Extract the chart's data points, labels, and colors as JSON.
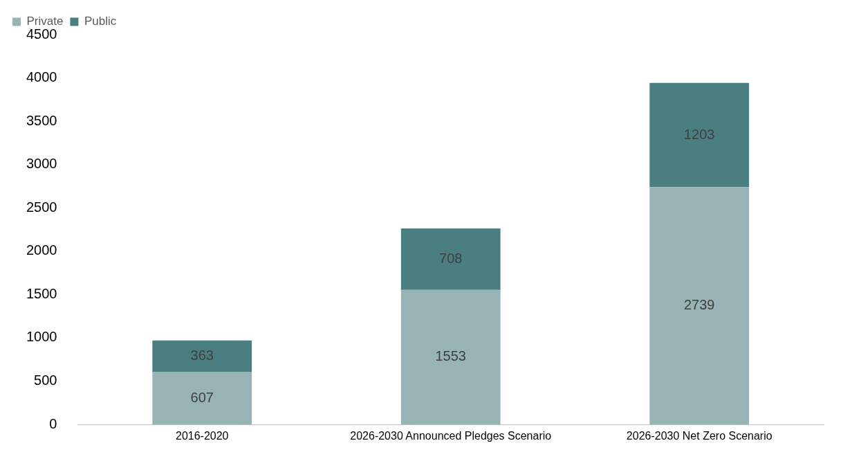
{
  "chart_data": {
    "type": "bar",
    "stacked": true,
    "categories": [
      "2016-2020",
      "2026-2030 Announced Pledges Scenario",
      "2026-2030 Net Zero Scenario"
    ],
    "series": [
      {
        "name": "Private",
        "color": "#97b3b4",
        "values": [
          607,
          1553,
          2739
        ]
      },
      {
        "name": "Public",
        "color": "#4a7e80",
        "values": [
          363,
          708,
          1203
        ]
      }
    ],
    "ylim": [
      0,
      4500
    ],
    "yticks": [
      0,
      500,
      1000,
      1500,
      2000,
      2500,
      3000,
      3500,
      4000,
      4500
    ],
    "grid": false,
    "legend": "top",
    "data_labels": true
  }
}
